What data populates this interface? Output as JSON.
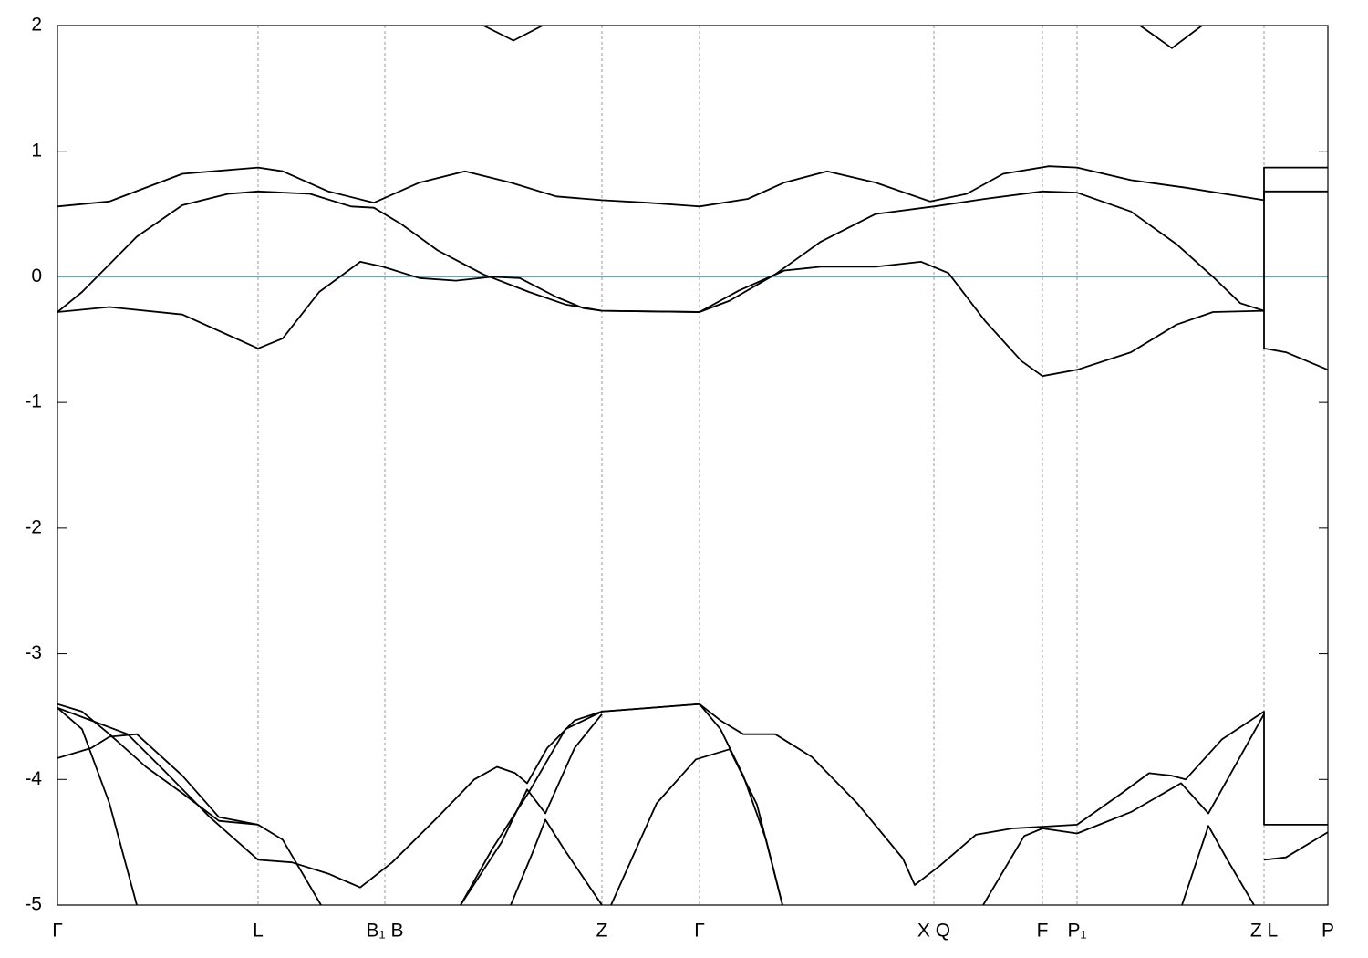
{
  "chart_data": {
    "type": "line",
    "xlim": [
      0,
      1393
    ],
    "ylim": [
      -5,
      2
    ],
    "yticks": [
      -5,
      -4,
      -3,
      -2,
      -1,
      0,
      1,
      2
    ],
    "xticks": [
      {
        "value": 0,
        "label": "Γ"
      },
      {
        "value": 220,
        "label": "L"
      },
      {
        "value": 359,
        "label": "B₁ B"
      },
      {
        "value": 597,
        "label": "Z"
      },
      {
        "value": 704,
        "label": "Γ"
      },
      {
        "value": 961,
        "label": "X Q"
      },
      {
        "value": 1080,
        "label": "F"
      },
      {
        "value": 1118,
        "label": "P₁"
      },
      {
        "value": 1323,
        "label": "Z L"
      },
      {
        "value": 1393,
        "label": "P"
      }
    ],
    "grid": true,
    "hline": {
      "value": 0,
      "color": "#4fb3c8"
    },
    "series": [
      {
        "color": "#000000",
        "x": [
          0,
          57,
          137,
          220,
          247,
          297,
          347,
          397,
          447,
          497,
          547,
          597,
          647,
          704,
          757,
          797,
          844,
          897,
          957,
          997,
          1037,
          1087,
          1118,
          1177,
          1237,
          1323,
          1323,
          1393
        ],
        "values": [
          0.56,
          0.6,
          0.82,
          0.87,
          0.84,
          0.68,
          0.59,
          0.75,
          0.84,
          0.75,
          0.64,
          0.61,
          0.59,
          0.56,
          0.62,
          0.75,
          0.84,
          0.75,
          0.6,
          0.66,
          0.82,
          0.88,
          0.87,
          0.77,
          0.71,
          0.61,
          0.87,
          0.87
        ]
      },
      {
        "color": "#000000",
        "x": [
          0,
          27,
          87,
          137,
          187,
          220,
          277,
          322,
          347,
          377,
          417,
          467,
          517,
          557,
          597,
          704,
          737,
          787,
          837,
          897,
          961,
          1017,
          1080,
          1118,
          1177,
          1227,
          1267,
          1297,
          1323,
          1323,
          1393
        ],
        "values": [
          -0.28,
          -0.12,
          0.32,
          0.57,
          0.66,
          0.68,
          0.66,
          0.56,
          0.55,
          0.42,
          0.21,
          0.02,
          -0.12,
          -0.22,
          -0.27,
          -0.28,
          -0.19,
          0.02,
          0.28,
          0.5,
          0.56,
          0.62,
          0.68,
          0.67,
          0.52,
          0.26,
          0,
          -0.21,
          -0.27,
          0.68,
          0.68
        ]
      },
      {
        "color": "#000000",
        "x": [
          0,
          57,
          137,
          220,
          247,
          287,
          332,
          357,
          397,
          437,
          477,
          507,
          547,
          577,
          597,
          704,
          747,
          797,
          837,
          897,
          947,
          977,
          1017,
          1057,
          1080,
          1118,
          1177,
          1227,
          1267,
          1323,
          1323,
          1347,
          1393
        ],
        "values": [
          -0.28,
          -0.24,
          -0.3,
          -0.57,
          -0.49,
          -0.12,
          0.12,
          0.08,
          -0.01,
          -0.03,
          0,
          -0.01,
          -0.16,
          -0.25,
          -0.27,
          -0.28,
          -0.11,
          0.05,
          0.08,
          0.08,
          0.12,
          0.03,
          -0.35,
          -0.67,
          -0.79,
          -0.74,
          -0.6,
          -0.38,
          -0.28,
          -0.27,
          -0.57,
          -0.6,
          -0.74
        ]
      },
      {
        "color": "#000000",
        "x": [
          467,
          500,
          532
        ],
        "values": [
          2,
          1.88,
          2
        ]
      },
      {
        "color": "#000000",
        "x": [
          1187,
          1222,
          1255
        ],
        "values": [
          2,
          1.82,
          2
        ]
      },
      {
        "color": "#000000",
        "x": [
          0,
          27,
          57,
          97,
          137,
          177,
          220,
          247,
          289
        ],
        "values": [
          -3.4,
          -3.46,
          -3.64,
          -3.9,
          -4.11,
          -4.33,
          -4.36,
          -4.48,
          -5
        ]
      },
      {
        "color": "#000000",
        "x": [
          442,
          477,
          517,
          557,
          597,
          704,
          727,
          752,
          777,
          795
        ],
        "values": [
          -5,
          -4.55,
          -4.1,
          -3.6,
          -3.46,
          -3.4,
          -3.6,
          -3.97,
          -4.48,
          -5
        ]
      },
      {
        "color": "#000000",
        "x": [
          0,
          37,
          77,
          117,
          167,
          220,
          257,
          297,
          332,
          367,
          417,
          457,
          482,
          502,
          515,
          537,
          567,
          597,
          704,
          727,
          752,
          787,
          827,
          877,
          927,
          940,
          967,
          1007,
          1047,
          1118,
          1167,
          1197,
          1222,
          1237,
          1277,
          1323,
          1323,
          1393
        ],
        "values": [
          -3.43,
          -3.53,
          -3.64,
          -3.93,
          -4.3,
          -4.64,
          -4.66,
          -4.75,
          -4.86,
          -4.66,
          -4.3,
          -4.0,
          -3.9,
          -3.95,
          -4.03,
          -3.75,
          -3.53,
          -3.46,
          -3.4,
          -3.53,
          -3.64,
          -3.64,
          -3.82,
          -4.19,
          -4.63,
          -4.84,
          -4.69,
          -4.44,
          -4.39,
          -4.36,
          -4.11,
          -3.95,
          -3.97,
          -4.0,
          -3.68,
          -3.46,
          -4.36,
          -4.36
        ]
      },
      {
        "color": "#000000",
        "x": [
          0,
          27,
          57,
          87
        ],
        "values": [
          -3.43,
          -3.6,
          -4.19,
          -5
        ]
      },
      {
        "color": "#000000",
        "x": [
          0,
          37,
          57,
          87,
          137,
          177,
          220
        ],
        "values": [
          -3.83,
          -3.75,
          -3.66,
          -3.64,
          -3.97,
          -4.3,
          -4.36
        ]
      },
      {
        "color": "#000000",
        "x": [
          442,
          487,
          515,
          535,
          567,
          597
        ],
        "values": [
          -5,
          -4.5,
          -4.08,
          -4.27,
          -3.75,
          -3.48
        ]
      },
      {
        "color": "#000000",
        "x": [
          497,
          520,
          535,
          555,
          597
        ],
        "values": [
          -5,
          -4.6,
          -4.32,
          -4.55,
          -5
        ]
      },
      {
        "color": "#000000",
        "x": [
          607,
          657,
          700,
          737,
          767,
          795
        ],
        "values": [
          -5,
          -4.19,
          -3.84,
          -3.76,
          -4.2,
          -5
        ]
      },
      {
        "color": "#000000",
        "x": [
          1015,
          1060,
          1080,
          1118,
          1177,
          1232,
          1262,
          1323
        ],
        "values": [
          -5,
          -4.45,
          -4.39,
          -4.43,
          -4.26,
          -4.03,
          -4.27,
          -3.48
        ]
      },
      {
        "color": "#000000",
        "x": [
          1233,
          1262,
          1282,
          1312
        ],
        "values": [
          -5,
          -4.37,
          -4.63,
          -5
        ]
      },
      {
        "color": "#000000",
        "x": [
          1323,
          1347,
          1393
        ],
        "values": [
          -4.64,
          -4.62,
          -4.42
        ]
      }
    ]
  }
}
